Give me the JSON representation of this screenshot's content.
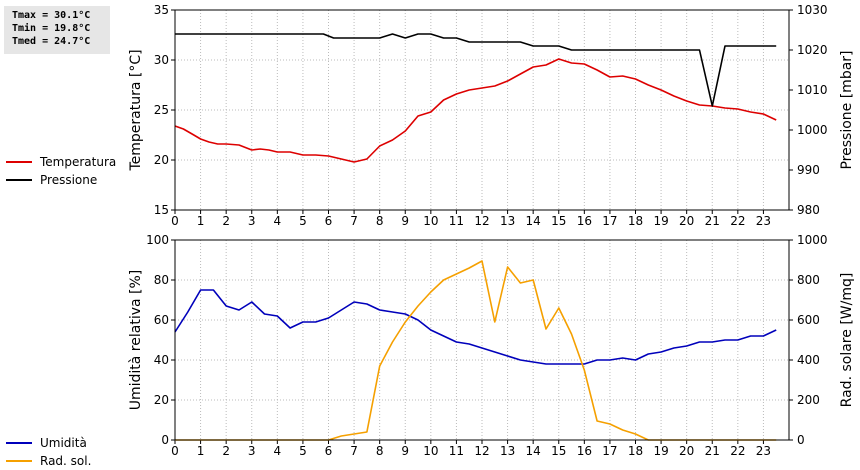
{
  "stats": {
    "tmax": "Tmax = 30.1°C",
    "tmin": "Tmin = 19.8°C",
    "tmed": "Tmed = 24.7°C"
  },
  "chart_data": [
    {
      "type": "line",
      "ylabel": "Temperatura [°C]",
      "y2label": "Pressione [mbar]",
      "xlim": [
        0,
        24
      ],
      "ylim": [
        15,
        35
      ],
      "y2lim": [
        980,
        1030
      ],
      "xticks": [
        "0",
        "1",
        "2",
        "3",
        "4",
        "5",
        "6",
        "7",
        "8",
        "9",
        "10",
        "11",
        "12",
        "13",
        "14",
        "15",
        "16",
        "17",
        "18",
        "19",
        "20",
        "21",
        "22",
        "23"
      ],
      "yticks": [
        "15",
        "20",
        "25",
        "30",
        "35"
      ],
      "y2ticks": [
        "980",
        "990",
        "1000",
        "1010",
        "1020",
        "1030"
      ],
      "grid": true,
      "legend_position": "left",
      "series": [
        {
          "name": "Temperatura",
          "axis": "left",
          "color": "#dd0000",
          "x": [
            0,
            0.33,
            0.67,
            1,
            1.33,
            1.67,
            2,
            2.5,
            3,
            3.33,
            3.67,
            4,
            4.5,
            5,
            5.5,
            6,
            6.5,
            7,
            7.5,
            8,
            8.5,
            9,
            9.5,
            10,
            10.5,
            11,
            11.5,
            12,
            12.5,
            13,
            13.5,
            14,
            14.5,
            15,
            15.5,
            16,
            16.5,
            17,
            17.5,
            18,
            18.5,
            19,
            19.5,
            20,
            20.5,
            21,
            21.5,
            22,
            22.5,
            23,
            23.5
          ],
          "y": [
            23.4,
            23.1,
            22.6,
            22.1,
            21.8,
            21.6,
            21.6,
            21.5,
            21.0,
            21.1,
            21.0,
            20.8,
            20.8,
            20.5,
            20.5,
            20.4,
            20.1,
            19.8,
            20.1,
            21.4,
            22.0,
            22.9,
            24.4,
            24.8,
            26.0,
            26.6,
            27.0,
            27.2,
            27.4,
            27.9,
            28.6,
            29.3,
            29.5,
            30.1,
            29.7,
            29.6,
            29.0,
            28.3,
            28.4,
            28.1,
            27.5,
            27.0,
            26.4,
            25.9,
            25.5,
            25.4,
            25.2,
            25.1,
            24.8,
            24.6,
            24.0
          ]
        },
        {
          "name": "Pressione",
          "axis": "right",
          "color": "#000000",
          "x": [
            0,
            1,
            2,
            3,
            4,
            5,
            5.8,
            6.2,
            7,
            8,
            8.5,
            9,
            9.5,
            10,
            10.5,
            11,
            11.5,
            12,
            12.5,
            13,
            13.5,
            14,
            15,
            15.5,
            16,
            17,
            18,
            19,
            20,
            20.5,
            21,
            21.5,
            22,
            23,
            23.5
          ],
          "y": [
            1024,
            1024,
            1024,
            1024,
            1024,
            1024,
            1024,
            1023,
            1023,
            1023,
            1024,
            1023,
            1024,
            1024,
            1023,
            1023,
            1022,
            1022,
            1022,
            1022,
            1022,
            1021,
            1021,
            1020,
            1020,
            1020,
            1020,
            1020,
            1020,
            1020,
            1006,
            1021,
            1021,
            1021,
            1021
          ]
        }
      ]
    },
    {
      "type": "line",
      "ylabel": "Umidità relativa [%]",
      "y2label": "Rad. solare [W/mq]",
      "xlim": [
        0,
        24
      ],
      "ylim": [
        0,
        100
      ],
      "y2lim": [
        0,
        1000
      ],
      "xticks": [
        "0",
        "1",
        "2",
        "3",
        "4",
        "5",
        "6",
        "7",
        "8",
        "9",
        "10",
        "11",
        "12",
        "13",
        "14",
        "15",
        "16",
        "17",
        "18",
        "19",
        "20",
        "21",
        "22",
        "23"
      ],
      "yticks": [
        "0",
        "20",
        "40",
        "60",
        "80",
        "100"
      ],
      "y2ticks": [
        "0",
        "200",
        "400",
        "600",
        "800",
        "1000"
      ],
      "grid": true,
      "legend_position": "left",
      "series": [
        {
          "name": "Umidità",
          "axis": "left",
          "color": "#0000bb",
          "x": [
            0,
            0.5,
            1,
            1.5,
            2,
            2.5,
            3,
            3.5,
            4,
            4.5,
            5,
            5.5,
            6,
            6.5,
            7,
            7.5,
            8,
            8.5,
            9,
            9.5,
            10,
            10.5,
            11,
            11.5,
            12,
            12.5,
            13,
            13.5,
            14,
            14.5,
            15,
            15.5,
            16,
            16.5,
            17,
            17.5,
            18,
            18.5,
            19,
            19.5,
            20,
            20.5,
            21,
            21.5,
            22,
            22.5,
            23,
            23.5
          ],
          "y": [
            54,
            64,
            75,
            75,
            67,
            65,
            69,
            63,
            62,
            56,
            59,
            59,
            61,
            65,
            69,
            68,
            65,
            64,
            63,
            60,
            55,
            52,
            49,
            48,
            46,
            44,
            42,
            40,
            39,
            38,
            38,
            38,
            38,
            40,
            40,
            41,
            40,
            43,
            44,
            46,
            47,
            49,
            49,
            50,
            50,
            52,
            52,
            55
          ]
        },
        {
          "name": "Rad. sol.",
          "axis": "right",
          "color": "#f5a000",
          "x": [
            0,
            1,
            2,
            3,
            4,
            5,
            6,
            6.5,
            7,
            7.5,
            8,
            8.5,
            9,
            9.5,
            10,
            10.5,
            11,
            11.5,
            12,
            12.5,
            13,
            13.5,
            14,
            14.5,
            15,
            15.5,
            16,
            16.5,
            17,
            17.5,
            18,
            18.5,
            19,
            20,
            21,
            22,
            23,
            23.5
          ],
          "y": [
            0,
            0,
            0,
            0,
            0,
            0,
            0,
            20,
            30,
            40,
            370,
            490,
            590,
            670,
            740,
            800,
            830,
            860,
            895,
            590,
            865,
            785,
            800,
            555,
            660,
            530,
            350,
            95,
            80,
            50,
            30,
            0,
            0,
            0,
            0,
            0,
            0,
            0
          ]
        }
      ]
    }
  ]
}
